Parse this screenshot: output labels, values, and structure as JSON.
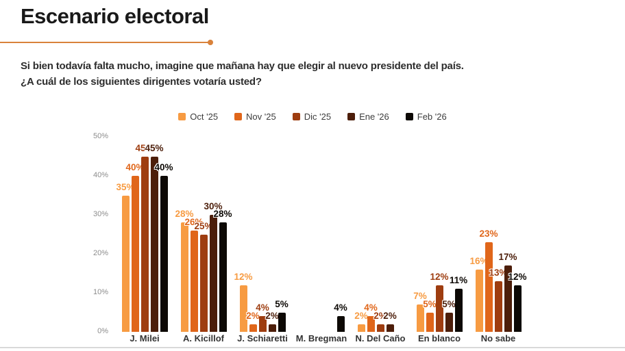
{
  "slide": {
    "title": "Escenario electoral",
    "question_line1": "Si bien todavía falta mucho, imagine que mañana hay que elegir al nuevo presidente del país.",
    "question_line2": "¿A cuál de los siguientes dirigentes votaría usted?"
  },
  "chart_data": {
    "type": "bar",
    "title": "Escenario electoral",
    "categories": [
      "J. Milei",
      "A. Kicillof",
      "J. Schiaretti",
      "M. Bregman",
      "N. Del Caño",
      "En blanco",
      "No sabe"
    ],
    "series": [
      {
        "name": "Oct '25",
        "color": "#F79B42",
        "values": [
          35,
          28,
          12,
          null,
          2,
          7,
          16
        ]
      },
      {
        "name": "Nov '25",
        "color": "#E0661A",
        "values": [
          40,
          26,
          2,
          null,
          4,
          5,
          23
        ]
      },
      {
        "name": "Dic '25",
        "color": "#9E3D10",
        "values": [
          45,
          25,
          4,
          null,
          2,
          12,
          13
        ]
      },
      {
        "name": "Ene '26",
        "color": "#4C1E0A",
        "values": [
          45,
          30,
          2,
          null,
          2,
          5,
          17
        ]
      },
      {
        "name": "Feb '26",
        "color": "#0D0905",
        "values": [
          40,
          28,
          5,
          4,
          null,
          11,
          12
        ]
      }
    ],
    "value_suffix": "%",
    "y_ticks": [
      "0%",
      "10%",
      "20%",
      "30%",
      "40%",
      "50%"
    ],
    "ylim": [
      0,
      50
    ],
    "grid": false,
    "legend_position": "top-center"
  },
  "theme": {
    "accent": "#D9823B",
    "title_color": "#191919",
    "axis_label_color": "#8C8C8C",
    "category_label_color": "#333333",
    "divider_color": "#D9D9D9"
  }
}
